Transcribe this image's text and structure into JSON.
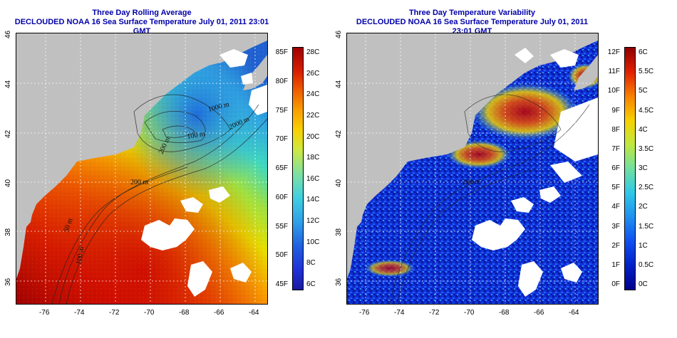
{
  "left": {
    "title_line1": "Three Day Rolling Average",
    "title_line2": "DECLOUDED NOAA 16 Sea Surface Temperature July 01, 2011 23:01 GMT",
    "contours": [
      "1000 m",
      "100 m",
      "2000 m",
      "200 m",
      "200 m",
      "50 m",
      "100 m"
    ],
    "colorbar_f": [
      "85F",
      "80F",
      "75F",
      "70F",
      "65F",
      "60F",
      "55F",
      "50F",
      "45F"
    ],
    "colorbar_c": [
      "28C",
      "26C",
      "24C",
      "22C",
      "20C",
      "18C",
      "16C",
      "14C",
      "12C",
      "10C",
      "8C",
      "6C"
    ]
  },
  "right": {
    "title_line1": "Three Day Temperature Variability",
    "title_line2": "DECLOUDED NOAA 16 Sea Surface Temperature July 01, 2011 23:01 GMT",
    "contours": [
      "200 m"
    ],
    "colorbar_f": [
      "12F",
      "11F",
      "10F",
      "9F",
      "8F",
      "7F",
      "6F",
      "5F",
      "4F",
      "3F",
      "2F",
      "1F",
      "0F"
    ],
    "colorbar_c": [
      "6C",
      "5.5C",
      "5C",
      "4.5C",
      "4C",
      "3.5C",
      "3C",
      "2.5C",
      "2C",
      "1.5C",
      "1C",
      "0.5C",
      "0C"
    ]
  },
  "axes": {
    "lon_ticks": [
      "-76",
      "-74",
      "-72",
      "-70",
      "-68",
      "-66",
      "-64"
    ],
    "lat_ticks": [
      "46",
      "44",
      "42",
      "40",
      "38",
      "36"
    ]
  },
  "colors": {
    "land": "#c0c0c0",
    "title": "#0000aa"
  }
}
